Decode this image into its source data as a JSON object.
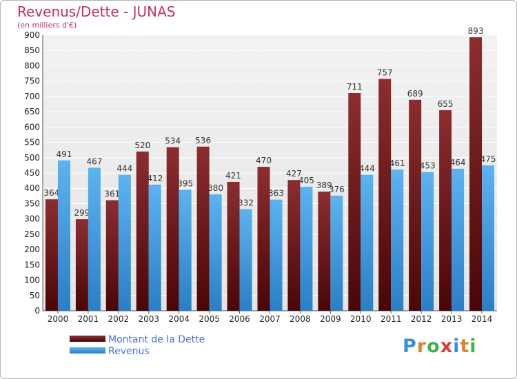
{
  "chart_data": {
    "type": "bar",
    "title": "Revenus/Dette - JUNAS",
    "subtitle": "(en milliers d'€)",
    "categories": [
      "2000",
      "2001",
      "2002",
      "2003",
      "2004",
      "2005",
      "2006",
      "2007",
      "2008",
      "2009",
      "2010",
      "2011",
      "2012",
      "2013",
      "2014"
    ],
    "series": [
      {
        "name": "Montant de la Dette",
        "color": "#7a1a1f",
        "values": [
          364,
          299,
          361,
          520,
          534,
          536,
          421,
          470,
          427,
          389,
          711,
          757,
          689,
          655,
          893
        ]
      },
      {
        "name": "Revenus",
        "color": "#3d9ee6",
        "values": [
          491,
          467,
          444,
          412,
          395,
          380,
          332,
          363,
          405,
          376,
          444,
          461,
          453,
          464,
          475
        ]
      }
    ],
    "ylim": [
      0,
      900
    ],
    "yticks": [
      0,
      50,
      100,
      150,
      200,
      250,
      300,
      350,
      400,
      450,
      500,
      550,
      600,
      650,
      700,
      750,
      800,
      850,
      900
    ],
    "grid": true,
    "legend": "bottom-left"
  },
  "logo": {
    "letters": [
      {
        "ch": "P",
        "color": "#3b8fd9"
      },
      {
        "ch": "r",
        "color": "#e0832a"
      },
      {
        "ch": "o",
        "color": "#3bb34a"
      },
      {
        "ch": "x",
        "color": "#d93b3b"
      },
      {
        "ch": "i",
        "color": "#3b8fd9"
      },
      {
        "ch": "t",
        "color": "#e0832a"
      },
      {
        "ch": "i",
        "color": "#3bb34a"
      }
    ]
  }
}
